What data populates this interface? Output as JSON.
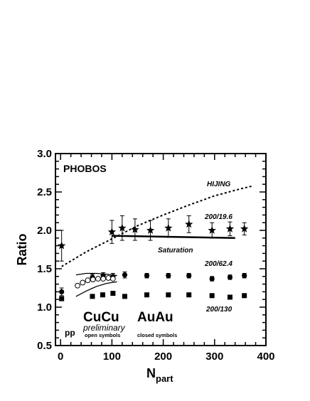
{
  "chart_data": {
    "type": "scatter",
    "xlabel": "N",
    "xlabel_sub": "part",
    "ylabel": "Ratio",
    "xlim": [
      -10,
      400
    ],
    "ylim": [
      0.5,
      3.0
    ],
    "x_ticks": [
      0,
      100,
      200,
      300,
      400
    ],
    "y_ticks": [
      0.5,
      1.0,
      1.5,
      2.0,
      2.5,
      3.0
    ],
    "x_tick_labels": [
      "0",
      "100",
      "200",
      "300",
      "400"
    ],
    "y_tick_labels": [
      "0.5",
      "1.0",
      "1.5",
      "2.0",
      "2.5",
      "3.0"
    ],
    "grid": false,
    "experiment": "PHOBOS",
    "series": [
      {
        "label": "200/19.6",
        "marker": "star",
        "points": [
          {
            "x": 2,
            "y": 1.8,
            "err": 0.2
          },
          {
            "x": 100,
            "y": 1.98,
            "err": 0.15
          },
          {
            "x": 120,
            "y": 2.03,
            "err": 0.16
          },
          {
            "x": 145,
            "y": 2.01,
            "err": 0.14
          },
          {
            "x": 175,
            "y": 2.0,
            "err": 0.13
          },
          {
            "x": 210,
            "y": 2.03,
            "err": 0.12
          },
          {
            "x": 250,
            "y": 2.08,
            "err": 0.11
          },
          {
            "x": 295,
            "y": 2.0,
            "err": 0.1
          },
          {
            "x": 330,
            "y": 2.02,
            "err": 0.09
          },
          {
            "x": 358,
            "y": 2.02,
            "err": 0.08
          }
        ]
      },
      {
        "label": "200/62.4",
        "marker": "circle",
        "points": [
          {
            "x": 2,
            "y": 1.2,
            "err": 0.05
          },
          {
            "x": 62,
            "y": 1.39,
            "err": 0.04
          },
          {
            "x": 83,
            "y": 1.41,
            "err": 0.04
          },
          {
            "x": 102,
            "y": 1.4,
            "err": 0.04
          },
          {
            "x": 125,
            "y": 1.42,
            "err": 0.04
          },
          {
            "x": 168,
            "y": 1.41,
            "err": 0.03
          },
          {
            "x": 210,
            "y": 1.41,
            "err": 0.03
          },
          {
            "x": 250,
            "y": 1.41,
            "err": 0.03
          },
          {
            "x": 295,
            "y": 1.37,
            "err": 0.03
          },
          {
            "x": 330,
            "y": 1.39,
            "err": 0.03
          },
          {
            "x": 358,
            "y": 1.41,
            "err": 0.03
          }
        ]
      },
      {
        "label": "200/130",
        "marker": "square",
        "points": [
          {
            "x": 2,
            "y": 1.11
          },
          {
            "x": 62,
            "y": 1.14
          },
          {
            "x": 82,
            "y": 1.16
          },
          {
            "x": 102,
            "y": 1.18
          },
          {
            "x": 125,
            "y": 1.14
          },
          {
            "x": 168,
            "y": 1.16
          },
          {
            "x": 210,
            "y": 1.16
          },
          {
            "x": 250,
            "y": 1.16
          },
          {
            "x": 295,
            "y": 1.15
          },
          {
            "x": 330,
            "y": 1.13
          },
          {
            "x": 358,
            "y": 1.15
          }
        ]
      },
      {
        "label": "CuCu 200/62.4 (open symbols)",
        "marker": "open-circle",
        "points": [
          {
            "x": 33,
            "y": 1.28
          },
          {
            "x": 43,
            "y": 1.32
          },
          {
            "x": 53,
            "y": 1.35
          },
          {
            "x": 63,
            "y": 1.36
          },
          {
            "x": 73,
            "y": 1.37
          },
          {
            "x": 83,
            "y": 1.37
          },
          {
            "x": 93,
            "y": 1.38
          },
          {
            "x": 102,
            "y": 1.37
          }
        ]
      }
    ],
    "curves": [
      {
        "label": "HIJING",
        "style": "dotted",
        "x": [
          2,
          50,
          100,
          150,
          200,
          250,
          300,
          350,
          375
        ],
        "y": [
          1.53,
          1.72,
          1.89,
          2.06,
          2.2,
          2.33,
          2.45,
          2.54,
          2.58
        ]
      },
      {
        "label": "Saturation",
        "style": "solid",
        "x": [
          100,
          340
        ],
        "y": [
          1.93,
          1.9
        ]
      },
      {
        "label": "",
        "style": "solid-thin",
        "x": [
          30,
          50,
          70,
          90,
          110
        ],
        "y": [
          1.42,
          1.44,
          1.44,
          1.43,
          1.41
        ]
      },
      {
        "label": "",
        "style": "solid-thin",
        "x": [
          30,
          50,
          70,
          90,
          110
        ],
        "y": [
          1.14,
          1.21,
          1.27,
          1.31,
          1.33
        ]
      }
    ],
    "annotations": {
      "label_19": "200/19.6",
      "label_62": "200/62.4",
      "label_130": "200/130",
      "hijing": "HIJING",
      "saturation": "Saturation",
      "cucu": "CuCu",
      "preliminary": "preliminary",
      "open_symbols": "open symbols",
      "auau": "AuAu",
      "closed_symbols": "closed symbols",
      "pp": "pp"
    }
  }
}
